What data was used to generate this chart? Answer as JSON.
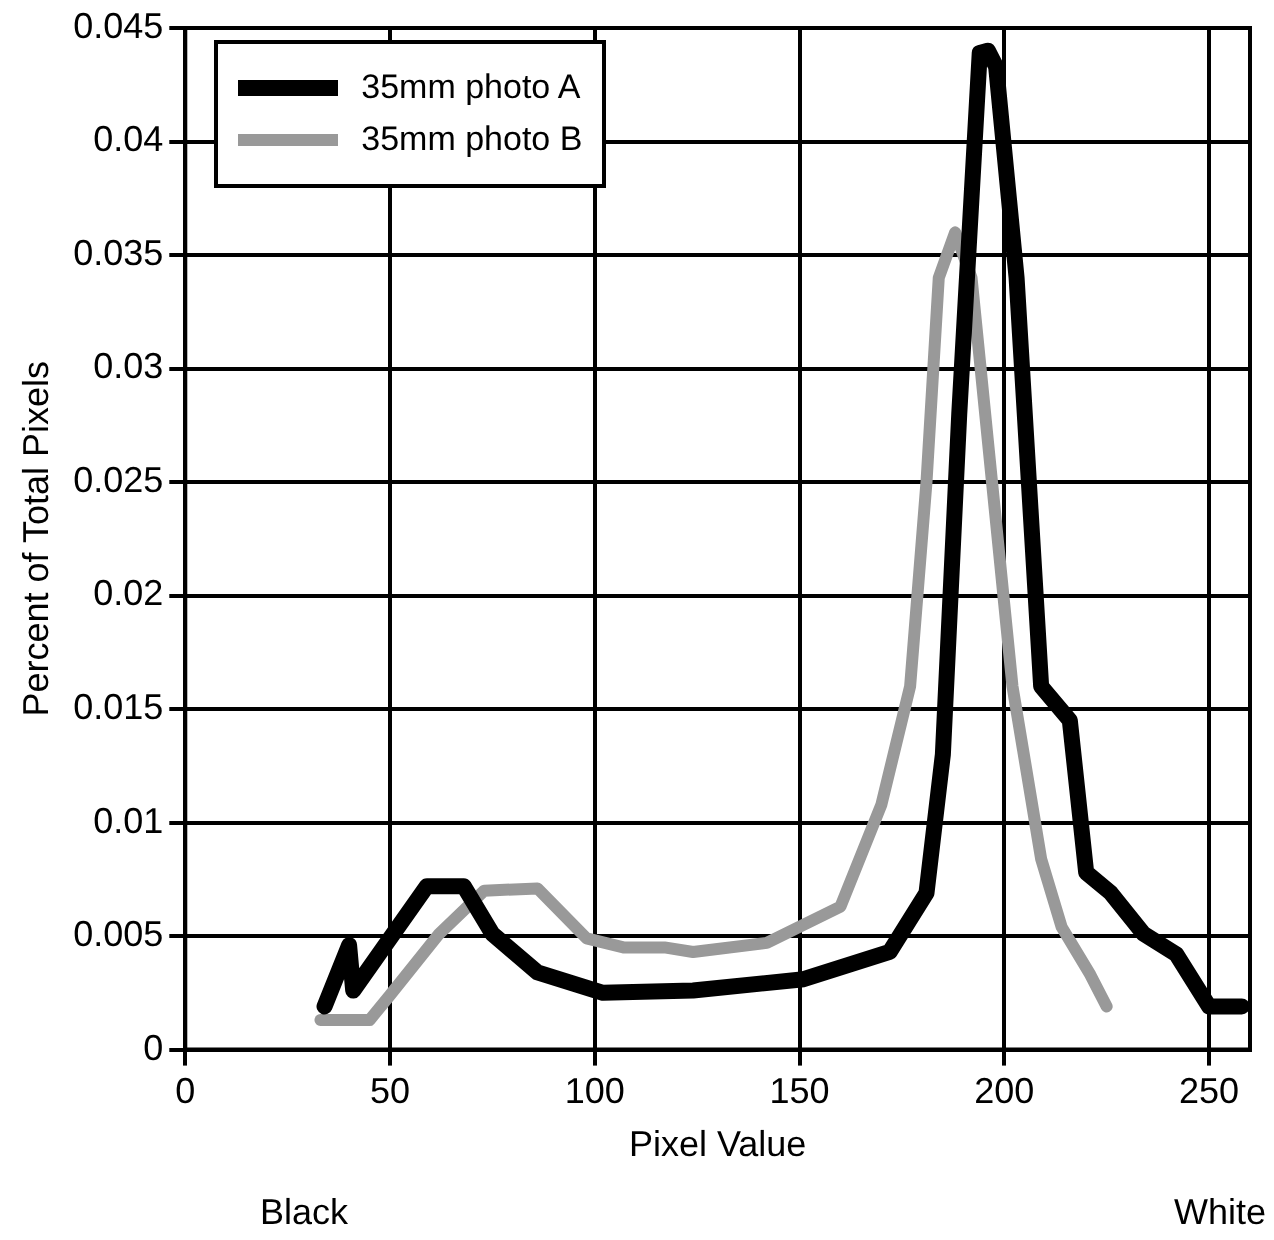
{
  "chart_data": {
    "type": "line",
    "xlabel": "Pixel Value",
    "ylabel": "Percent of Total Pixels",
    "xlim": [
      0,
      260
    ],
    "xticks": [
      0,
      50,
      100,
      150,
      200,
      250
    ],
    "ylim": [
      0,
      0.045
    ],
    "yticks": [
      0,
      0.005,
      0.01,
      0.015,
      0.02,
      0.025,
      0.03,
      0.035,
      0.04,
      0.045
    ],
    "grid": true,
    "legend": "top left",
    "marker": "none",
    "line_style": "solid",
    "annotations": [
      "Black",
      "White"
    ],
    "series": [
      {
        "name": "35mm photo A",
        "color": "#000000",
        "x": [
          34,
          40,
          41,
          59,
          68,
          75,
          86,
          102,
          124,
          151,
          172,
          181,
          185,
          189,
          194,
          196,
          198,
          203,
          209,
          216,
          220,
          226,
          234,
          242,
          250,
          258
        ],
        "values": [
          0.0019,
          0.0046,
          0.0026,
          0.0072,
          0.0072,
          0.0051,
          0.0034,
          0.0025,
          0.0026,
          0.0031,
          0.0043,
          0.0069,
          0.013,
          0.028,
          0.0439,
          0.044,
          0.0433,
          0.034,
          0.016,
          0.0145,
          0.0078,
          0.0069,
          0.0051,
          0.0042,
          0.0019,
          0.0019
        ]
      },
      {
        "name": "35mm photo B",
        "color": "#999999",
        "x": [
          33,
          45,
          50,
          62,
          73,
          86,
          98,
          107,
          117,
          124,
          142,
          160,
          170,
          177,
          181,
          184,
          188,
          192,
          197,
          202,
          209,
          214,
          221,
          225
        ],
        "values": [
          0.0013,
          0.0013,
          0.0024,
          0.0051,
          0.007,
          0.0071,
          0.0049,
          0.0045,
          0.0045,
          0.0043,
          0.0047,
          0.0063,
          0.0108,
          0.016,
          0.025,
          0.034,
          0.036,
          0.034,
          0.025,
          0.016,
          0.0084,
          0.0054,
          0.0033,
          0.0019
        ]
      }
    ]
  }
}
